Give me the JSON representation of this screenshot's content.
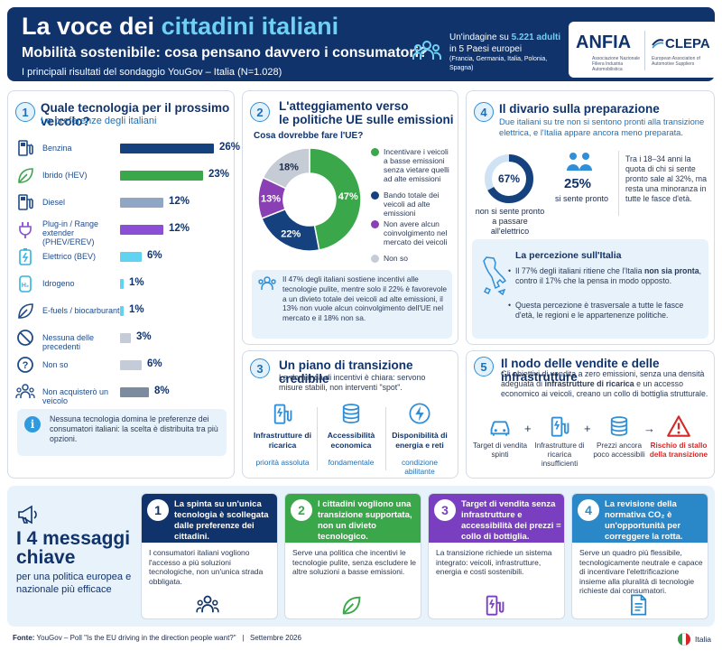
{
  "header": {
    "title_prefix": "La voce dei ",
    "title_highlight": "cittadini italiani",
    "subtitle": "Mobilità sostenibile: cosa pensano davvero i consumatori?",
    "subtitle2": "I principali risultati del sondaggio YouGov – Italia (N=1.028)",
    "survey_line1": "Un'indagine su ",
    "survey_count": "5.221 adulti",
    "survey_line2": "in 5 Paesi europei",
    "survey_countries": "(Francia, Germania, Italia, Polonia, Spagna)",
    "logo_anfia": "ANFIA",
    "logo_anfia_sub": "Associazione Nazionale Filiera Industria Automobilistica",
    "logo_clepa": "CLEPA",
    "logo_clepa_sub": "European Association of Automotive Suppliers"
  },
  "panel1": {
    "number": "1",
    "title": "Quale tecnologia per il prossimo veicolo?",
    "subtitle": "Le preferenze degli italiani",
    "rows": [
      {
        "label": "Benzina",
        "value": 26,
        "display": "26%",
        "color": "#15427e",
        "icon": "fuel-pump-icon"
      },
      {
        "label": "Ibrido (HEV)",
        "value": 23,
        "display": "23%",
        "color": "#3aa84a",
        "icon": "leaf-icon"
      },
      {
        "label": "Diesel",
        "value": 12,
        "display": "12%",
        "color": "#8fa7c4",
        "icon": "fuel-pump-icon"
      },
      {
        "label": "Plug-in / Range extender (PHEV/EREV)",
        "value": 12,
        "display": "12%",
        "color": "#8a4fd4",
        "icon": "plug-icon"
      },
      {
        "label": "Elettrico (BEV)",
        "value": 6,
        "display": "6%",
        "color": "#5fd3ef",
        "icon": "battery-icon"
      },
      {
        "label": "Idrogeno",
        "value": 1,
        "display": "1%",
        "color": "#5fd3ef",
        "icon": "hydrogen-icon"
      },
      {
        "label": "E-fuels / biocarburanti",
        "value": 1,
        "display": "1%",
        "color": "#5fd3ef",
        "icon": "leaf-icon"
      },
      {
        "label": "Nessuna delle precedenti",
        "value": 3,
        "display": "3%",
        "color": "#c3ccd8",
        "icon": "ban-icon"
      },
      {
        "label": "Non so",
        "value": 6,
        "display": "6%",
        "color": "#c3ccd8",
        "icon": "question-icon"
      },
      {
        "label": "Non acquisterò un veicolo",
        "value": 8,
        "display": "8%",
        "color": "#7c8ba0",
        "icon": "people-icon"
      }
    ],
    "note": "Nessuna tecnologia domina le preferenze dei consumatori italiani: la scelta è distribuita tra più opzioni."
  },
  "panel2": {
    "number": "2",
    "title_line1": "L'atteggiamento verso",
    "title_line2": "le politiche UE sulle emissioni",
    "question": "Cosa dovrebbe fare l'UE?",
    "slices": [
      {
        "label": "Incentivare i veicoli a basse emissioni senza vietare quelli ad alte emissioni",
        "value": 47,
        "display": "47%",
        "color": "#3aa84a"
      },
      {
        "label": "Bando totale dei veicoli ad alte emissioni",
        "value": 22,
        "display": "22%",
        "color": "#15427e"
      },
      {
        "label": "Non avere alcun coinvolgimento nel mercato dei veicoli",
        "value": 13,
        "display": "13%",
        "color": "#8a3fb5"
      },
      {
        "label": "Non so",
        "value": 18,
        "display": "18%",
        "color": "#c6ccd6"
      }
    ],
    "note": "Il 47% degli italiani sostiene incentivi alle tecnologie pulite, mentre solo il 22% è favorevole a un divieto totale dei veicoli ad alte emissioni, il 13% non vuole alcun coinvolgimento dell'UE nel mercato e il 18% non sa."
  },
  "panel3": {
    "number": "3",
    "title": "Un piano di transizione credibile",
    "subtitle": "La domanda di incentivi è chiara: servono misure stabili, non interventi \"spot\".",
    "items": [
      {
        "title": "Infrastrutture di ricarica",
        "tag": "priorità assoluta",
        "icon": "charging-station-icon"
      },
      {
        "title": "Accessibilità economica",
        "tag": "fondamentale",
        "icon": "coins-icon"
      },
      {
        "title": "Disponibilità di energia e reti",
        "tag": "condizione abilitante",
        "icon": "lightning-icon"
      }
    ]
  },
  "panel4": {
    "number": "4",
    "title": "Il divario sulla preparazione",
    "subtitle": "Due italiani su tre non si sentono pronti alla transizione elettrica, e l'Italia appare ancora meno preparata.",
    "ring_value": 67,
    "ring_display": "67%",
    "ring_caption": "non si sente pronto a passare all'elettrico",
    "ready_display": "25%",
    "ready_caption": "si sente pronto",
    "youth_note": "Tra i 18–34 anni la quota di chi si sente pronto sale al 32%, ma resta una minoranza in tutte le fasce d'età.",
    "perception_title": "La percezione sull'Italia",
    "bullet1_prefix": "Il 77% degli italiani ritiene che l'Italia ",
    "bullet1_bold": "non sia pronta",
    "bullet1_suffix": ", contro il 17% che la pensa in modo opposto.",
    "bullet2": "Questa percezione è trasversale a tutte le fasce d'età, le regioni e le appartenenze politiche."
  },
  "panel5": {
    "number": "5",
    "title": "Il nodo delle vendite e delle infrastrutture",
    "text_part1": "Gli obiettivi di vendita a zero emissioni, senza una densità adeguata di ",
    "text_bold": "infrastrutture di ricarica",
    "text_part2": " e un accesso economico ai veicoli, creano un collo di bottiglia strutturale.",
    "items": [
      {
        "label": "Target di vendita spinti",
        "icon": "car-icon"
      },
      {
        "label": "Infrastrutture di ricarica insufficienti",
        "icon": "charging-station-icon"
      },
      {
        "label": "Prezzi ancora poco accessibili",
        "icon": "coins-icon"
      },
      {
        "label": "Rischio di stallo della transizione",
        "icon": "warning-icon"
      }
    ]
  },
  "messages": {
    "count_label": "4 messaggi chiave",
    "big": "I 4 messaggi chiave",
    "sub": "per una politica europea e nazionale più efficace",
    "cards": [
      {
        "number": "1",
        "head": "La spinta su un'unica tecnologia è scollegata dalle preferenze dei cittadini.",
        "body": "I consumatori italiani vogliono l'accesso a più soluzioni tecnologiche, non un'unica strada obbligata.",
        "color": "#10336b",
        "icon": "people-icon"
      },
      {
        "number": "2",
        "head": "I cittadini vogliono una transizione supportata, non un divieto tecnologico.",
        "body": "Serve una politica che incentivi le tecnologie pulite, senza escludere le altre soluzioni a basse emissioni.",
        "color": "#3aa84a",
        "icon": "leaf-icon"
      },
      {
        "number": "3",
        "head": "Target di vendita senza infrastrutture e accessibilità dei prezzi = collo di bottiglia.",
        "body": "La transizione richiede un sistema integrato: veicoli, infrastrutture, energia e costi sostenibili.",
        "color": "#7a3fc0",
        "icon": "charging-station-icon"
      },
      {
        "number": "4",
        "head": "La revisione della normativa CO₂ è un'opportunità per correggere la rotta.",
        "body": "Serve un quadro più flessibile, tecnologicamente neutrale e capace di incentivare l'elettrificazione insieme alla pluralità di tecnologie richieste dai consumatori.",
        "color": "#2b88c8",
        "icon": "document-icon"
      }
    ]
  },
  "footer": {
    "source_label": "Fonte:",
    "source": "YouGov – Poll \"Is the EU driving in the direction people want?\"",
    "sep": "|",
    "date": "Settembre 2026",
    "country": "Italia"
  },
  "colors": {
    "navy": "#10336b",
    "accent": "#6fd0f5",
    "green": "#3aa84a",
    "purple": "#8a3fb5",
    "danger": "#d62828"
  }
}
